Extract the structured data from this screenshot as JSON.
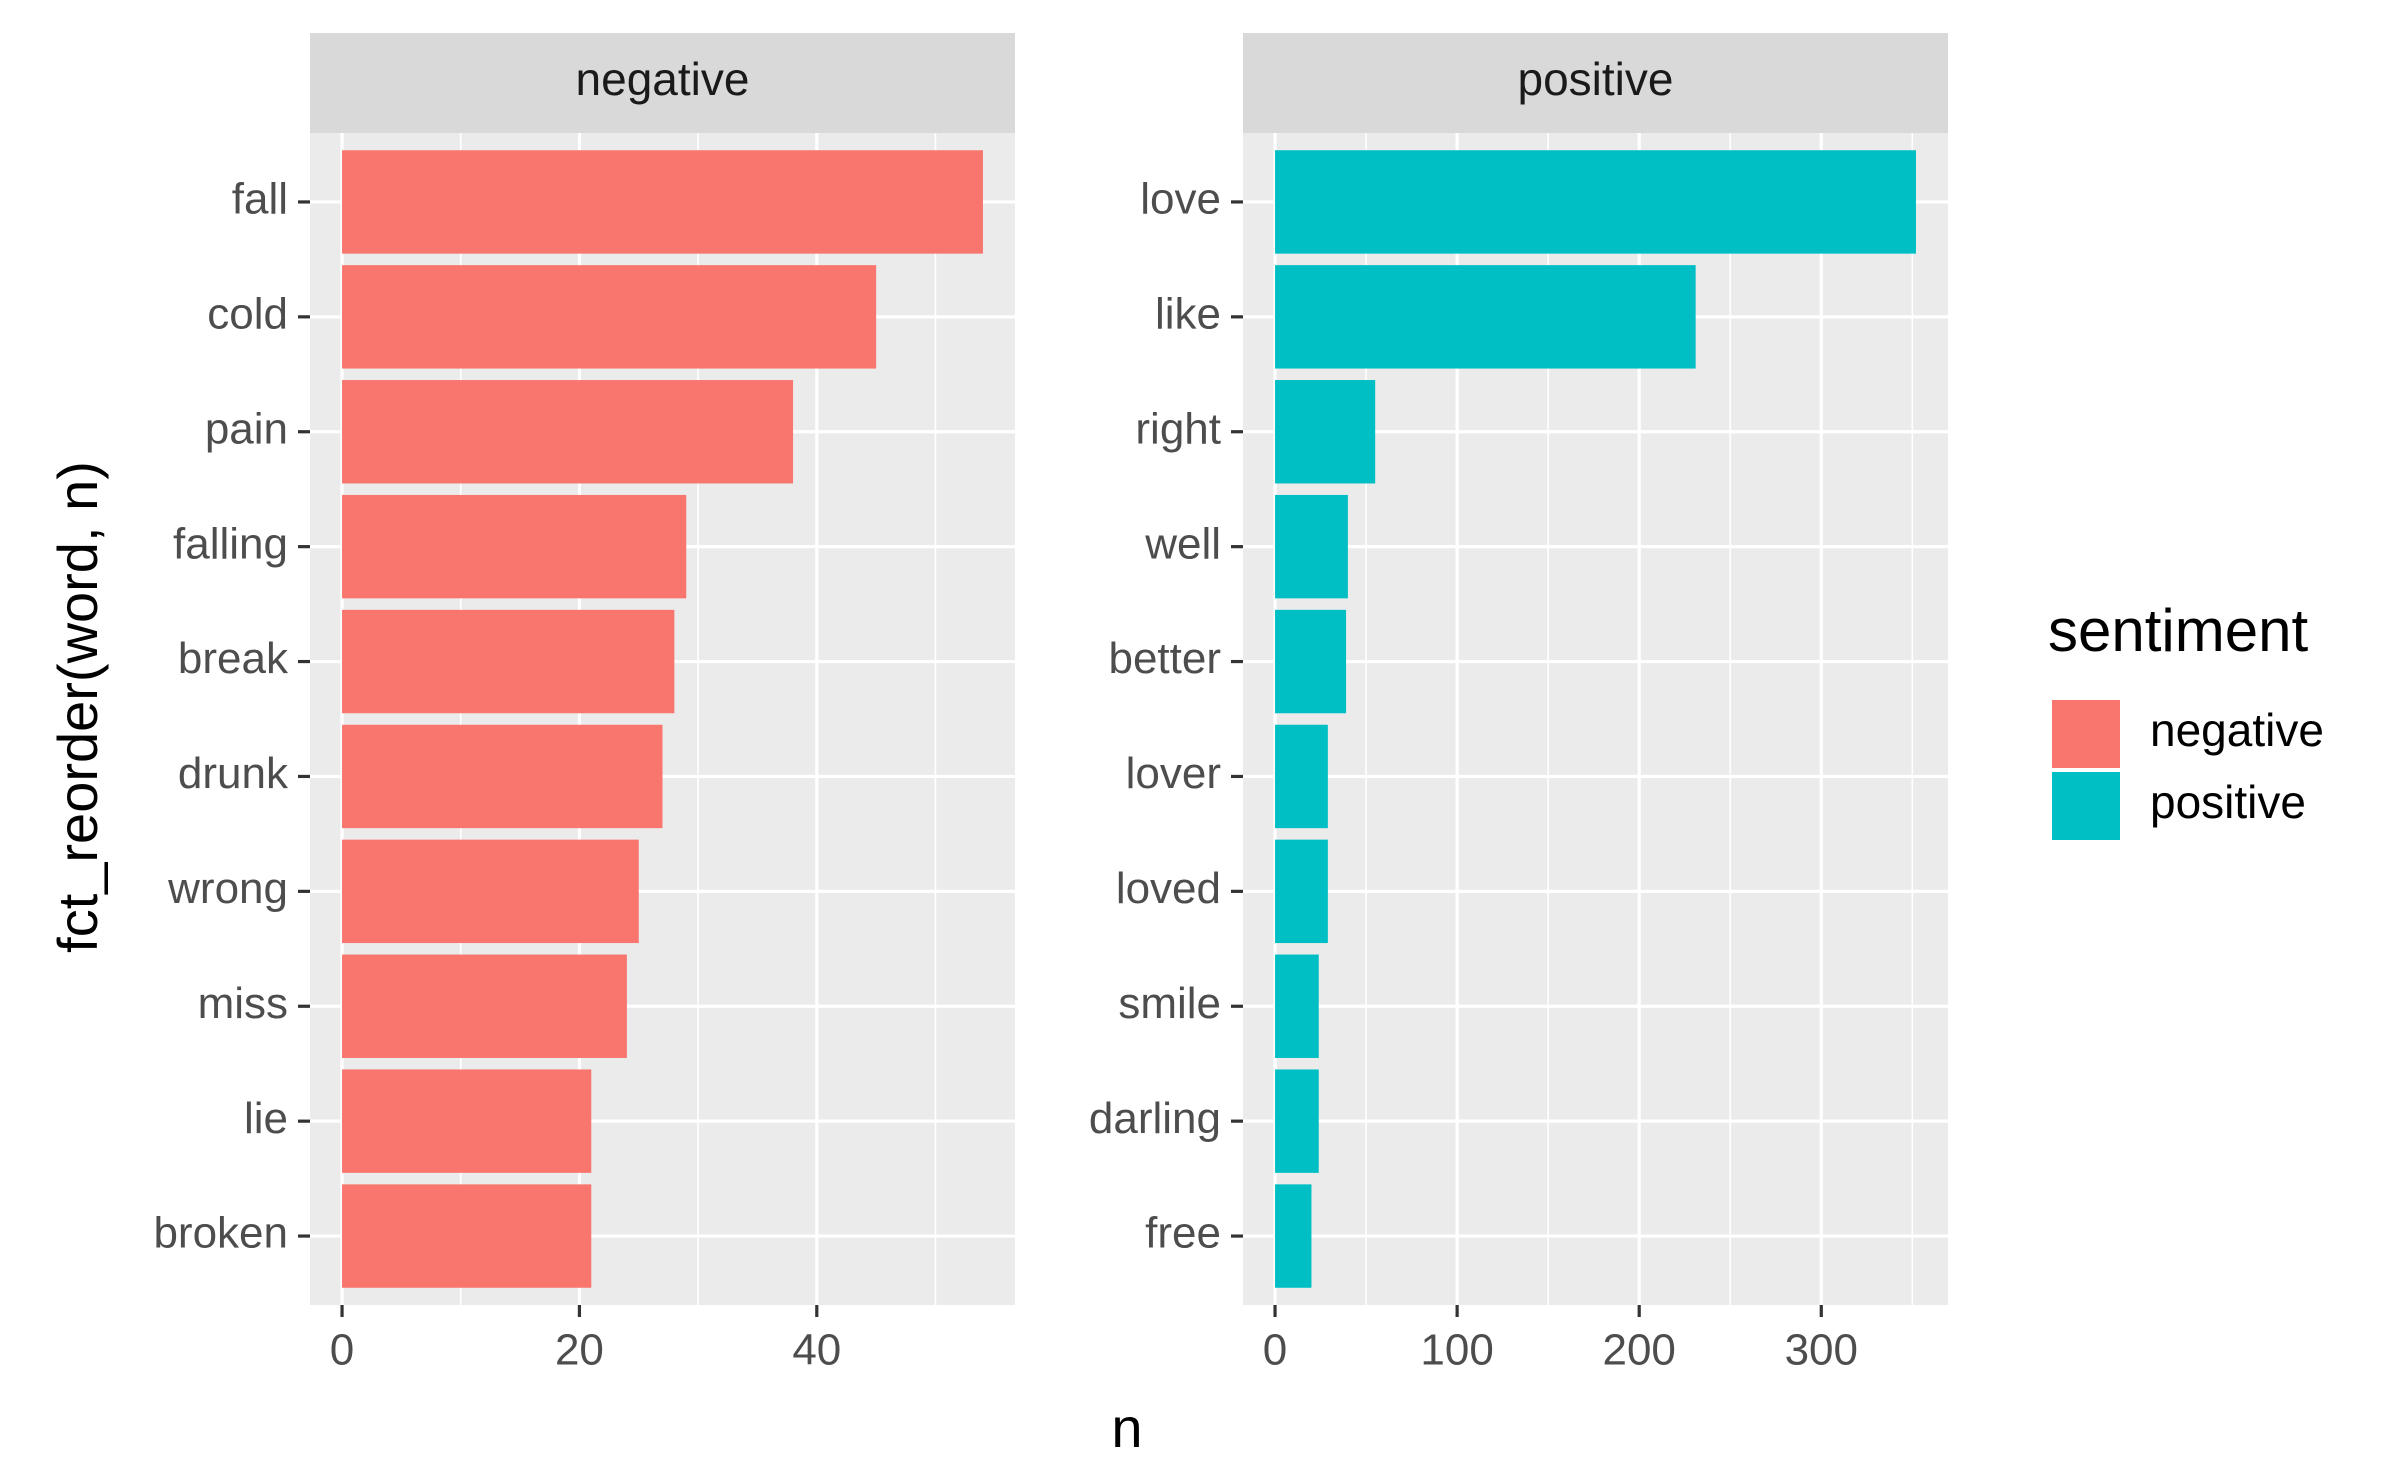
{
  "chart_data": {
    "type": "bar",
    "orientation": "horizontal",
    "xlabel": "n",
    "ylabel": "fct_reorder(word, n)",
    "legend": {
      "title": "sentiment",
      "placement": "right",
      "entries": [
        {
          "label": "negative",
          "color": "#F8766D"
        },
        {
          "label": "positive",
          "color": "#00BFC4"
        }
      ]
    },
    "grid": true,
    "facets": [
      {
        "label": "negative",
        "color": "#F8766D",
        "xlim": [
          -2.7,
          56.7
        ],
        "xticks": [
          0,
          20,
          40
        ],
        "categories": [
          "fall",
          "cold",
          "pain",
          "falling",
          "break",
          "drunk",
          "wrong",
          "miss",
          "lie",
          "broken"
        ],
        "values": [
          54,
          45,
          38,
          29,
          28,
          27,
          25,
          24,
          21,
          21
        ]
      },
      {
        "label": "positive",
        "color": "#00BFC4",
        "xlim": [
          -17.6,
          369.6
        ],
        "xticks": [
          0,
          100,
          200,
          300
        ],
        "categories": [
          "love",
          "like",
          "right",
          "well",
          "better",
          "lover",
          "loved",
          "smile",
          "darling",
          "free"
        ],
        "values": [
          352,
          231,
          55,
          40,
          39,
          29,
          29,
          24,
          24,
          20
        ]
      }
    ]
  }
}
